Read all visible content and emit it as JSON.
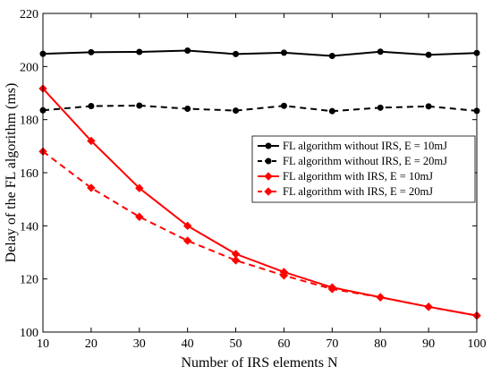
{
  "chart_data": {
    "type": "line",
    "title": "",
    "xlabel": "Number of IRS elements N",
    "ylabel": "Delay of the FL algorithm (ms)",
    "xlim": [
      10,
      100
    ],
    "ylim": [
      100,
      220
    ],
    "xticks": [
      10,
      20,
      30,
      40,
      50,
      60,
      70,
      80,
      90,
      100
    ],
    "yticks": [
      100,
      120,
      140,
      160,
      180,
      200,
      220
    ],
    "grid": false,
    "legend_position": "right",
    "x": [
      10,
      20,
      30,
      40,
      50,
      60,
      70,
      80,
      90,
      100
    ],
    "series": [
      {
        "name": "FL algorithm without IRS, E = 10mJ",
        "color": "#000000",
        "line_style": "solid",
        "marker": "circle",
        "values": [
          204.8,
          205.4,
          205.5,
          206.0,
          204.7,
          205.2,
          204.0,
          205.6,
          204.4,
          205.1
        ]
      },
      {
        "name": "FL algorithm without IRS, E = 20mJ",
        "color": "#000000",
        "line_style": "dashed",
        "marker": "circle",
        "values": [
          183.5,
          185.1,
          185.3,
          184.1,
          183.4,
          185.2,
          183.2,
          184.5,
          185.0,
          183.3
        ]
      },
      {
        "name": "FL algorithm with IRS, E = 10mJ",
        "color": "#ff0000",
        "line_style": "solid",
        "marker": "diamond",
        "values": [
          191.7,
          172.0,
          154.2,
          140.0,
          129.4,
          122.6,
          116.8,
          113.1,
          109.5,
          106.2
        ]
      },
      {
        "name": "FL algorithm with IRS, E = 20mJ",
        "color": "#ff0000",
        "line_style": "dashed",
        "marker": "diamond",
        "values": [
          168.0,
          154.3,
          143.4,
          134.4,
          127.0,
          121.3,
          116.2,
          113.1,
          109.5,
          106.2
        ]
      }
    ]
  }
}
